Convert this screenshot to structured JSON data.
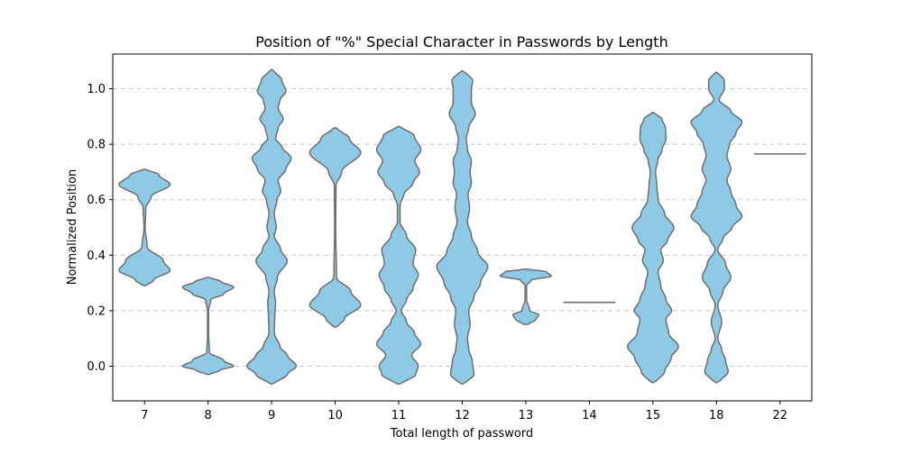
{
  "chart_data": {
    "type": "violin",
    "title": "Position of \"%\" Special Character in Passwords by Length",
    "xlabel": "Total length of password",
    "ylabel": "Normalized Position",
    "ylim": [
      -0.125,
      1.125
    ],
    "yticks": [
      0.0,
      0.2,
      0.4,
      0.6,
      0.8,
      1.0
    ],
    "ytick_labels": [
      "0.0",
      "0.2",
      "0.4",
      "0.6",
      "0.8",
      "1.0"
    ],
    "grid": "y-dashed",
    "fill_color": "#8ecae6",
    "edge_color": "#6e6e6e",
    "categories": [
      "7",
      "8",
      "9",
      "10",
      "11",
      "12",
      "13",
      "14",
      "15",
      "18",
      "22"
    ],
    "violins": [
      {
        "category": "7",
        "ymin": 0.29,
        "ymax": 0.71,
        "profile": [
          [
            0.29,
            0.08
          ],
          [
            0.31,
            0.35
          ],
          [
            0.345,
            0.98
          ],
          [
            0.38,
            0.72
          ],
          [
            0.43,
            0.1
          ],
          [
            0.5,
            0.02
          ],
          [
            0.57,
            0.05
          ],
          [
            0.61,
            0.25
          ],
          [
            0.655,
            0.98
          ],
          [
            0.69,
            0.55
          ],
          [
            0.71,
            0.08
          ]
        ]
      },
      {
        "category": "8",
        "ymin": -0.03,
        "ymax": 0.32,
        "profile": [
          [
            -0.03,
            0.08
          ],
          [
            -0.015,
            0.45
          ],
          [
            0.0,
            0.98
          ],
          [
            0.02,
            0.6
          ],
          [
            0.05,
            0.05
          ],
          [
            0.12,
            0.02
          ],
          [
            0.2,
            0.02
          ],
          [
            0.24,
            0.1
          ],
          [
            0.26,
            0.6
          ],
          [
            0.285,
            0.98
          ],
          [
            0.305,
            0.5
          ],
          [
            0.32,
            0.08
          ]
        ]
      },
      {
        "category": "9",
        "ymin": -0.065,
        "ymax": 1.07,
        "profile": [
          [
            -0.065,
            0.1
          ],
          [
            -0.03,
            0.6
          ],
          [
            0.0,
            0.95
          ],
          [
            0.04,
            0.6
          ],
          [
            0.07,
            0.32
          ],
          [
            0.12,
            0.1
          ],
          [
            0.18,
            0.12
          ],
          [
            0.23,
            0.15
          ],
          [
            0.27,
            0.1
          ],
          [
            0.32,
            0.22
          ],
          [
            0.38,
            0.6
          ],
          [
            0.42,
            0.35
          ],
          [
            0.47,
            0.1
          ],
          [
            0.5,
            0.18
          ],
          [
            0.55,
            0.1
          ],
          [
            0.6,
            0.2
          ],
          [
            0.63,
            0.35
          ],
          [
            0.67,
            0.25
          ],
          [
            0.71,
            0.55
          ],
          [
            0.75,
            0.75
          ],
          [
            0.79,
            0.4
          ],
          [
            0.82,
            0.15
          ],
          [
            0.86,
            0.25
          ],
          [
            0.89,
            0.45
          ],
          [
            0.93,
            0.25
          ],
          [
            0.96,
            0.32
          ],
          [
            0.99,
            0.55
          ],
          [
            1.03,
            0.4
          ],
          [
            1.07,
            0.06
          ]
        ]
      },
      {
        "category": "10",
        "ymin": 0.14,
        "ymax": 0.86,
        "profile": [
          [
            0.14,
            0.08
          ],
          [
            0.17,
            0.35
          ],
          [
            0.22,
            0.98
          ],
          [
            0.27,
            0.6
          ],
          [
            0.32,
            0.05
          ],
          [
            0.5,
            0.02
          ],
          [
            0.65,
            0.03
          ],
          [
            0.7,
            0.25
          ],
          [
            0.77,
            0.98
          ],
          [
            0.82,
            0.55
          ],
          [
            0.86,
            0.08
          ]
        ]
      },
      {
        "category": "11",
        "ymin": -0.065,
        "ymax": 0.865,
        "profile": [
          [
            -0.065,
            0.12
          ],
          [
            -0.03,
            0.65
          ],
          [
            0.0,
            0.75
          ],
          [
            0.04,
            0.5
          ],
          [
            0.08,
            0.85
          ],
          [
            0.12,
            0.6
          ],
          [
            0.16,
            0.3
          ],
          [
            0.2,
            0.1
          ],
          [
            0.24,
            0.3
          ],
          [
            0.28,
            0.55
          ],
          [
            0.33,
            0.75
          ],
          [
            0.37,
            0.55
          ],
          [
            0.42,
            0.65
          ],
          [
            0.47,
            0.3
          ],
          [
            0.52,
            0.05
          ],
          [
            0.58,
            0.05
          ],
          [
            0.62,
            0.2
          ],
          [
            0.66,
            0.55
          ],
          [
            0.7,
            0.8
          ],
          [
            0.74,
            0.62
          ],
          [
            0.78,
            0.85
          ],
          [
            0.83,
            0.6
          ],
          [
            0.865,
            0.08
          ]
        ]
      },
      {
        "category": "12",
        "ymin": -0.065,
        "ymax": 1.065,
        "profile": [
          [
            -0.065,
            0.1
          ],
          [
            -0.03,
            0.45
          ],
          [
            0.02,
            0.38
          ],
          [
            0.06,
            0.25
          ],
          [
            0.1,
            0.2
          ],
          [
            0.15,
            0.3
          ],
          [
            0.2,
            0.25
          ],
          [
            0.25,
            0.45
          ],
          [
            0.3,
            0.7
          ],
          [
            0.36,
            0.98
          ],
          [
            0.41,
            0.6
          ],
          [
            0.47,
            0.35
          ],
          [
            0.52,
            0.2
          ],
          [
            0.57,
            0.28
          ],
          [
            0.62,
            0.22
          ],
          [
            0.66,
            0.35
          ],
          [
            0.7,
            0.3
          ],
          [
            0.74,
            0.35
          ],
          [
            0.78,
            0.2
          ],
          [
            0.82,
            0.15
          ],
          [
            0.86,
            0.25
          ],
          [
            0.91,
            0.5
          ],
          [
            0.95,
            0.35
          ],
          [
            1.0,
            0.35
          ],
          [
            1.03,
            0.4
          ],
          [
            1.065,
            0.08
          ]
        ]
      },
      {
        "category": "13",
        "ymin": 0.15,
        "ymax": 0.35,
        "profile": [
          [
            0.15,
            0.1
          ],
          [
            0.17,
            0.4
          ],
          [
            0.185,
            0.5
          ],
          [
            0.2,
            0.15
          ],
          [
            0.24,
            0.03
          ],
          [
            0.29,
            0.03
          ],
          [
            0.31,
            0.2
          ],
          [
            0.325,
            0.98
          ],
          [
            0.34,
            0.8
          ],
          [
            0.35,
            0.1
          ]
        ]
      },
      {
        "category": "14",
        "line": 0.23
      },
      {
        "category": "15",
        "ymin": -0.06,
        "ymax": 0.915,
        "profile": [
          [
            -0.06,
            0.1
          ],
          [
            -0.02,
            0.45
          ],
          [
            0.03,
            0.7
          ],
          [
            0.07,
            0.98
          ],
          [
            0.12,
            0.6
          ],
          [
            0.17,
            0.5
          ],
          [
            0.2,
            0.72
          ],
          [
            0.24,
            0.5
          ],
          [
            0.29,
            0.3
          ],
          [
            0.34,
            0.2
          ],
          [
            0.38,
            0.4
          ],
          [
            0.42,
            0.3
          ],
          [
            0.45,
            0.55
          ],
          [
            0.5,
            0.8
          ],
          [
            0.55,
            0.45
          ],
          [
            0.6,
            0.2
          ],
          [
            0.65,
            0.15
          ],
          [
            0.7,
            0.1
          ],
          [
            0.74,
            0.18
          ],
          [
            0.78,
            0.35
          ],
          [
            0.82,
            0.5
          ],
          [
            0.86,
            0.48
          ],
          [
            0.89,
            0.35
          ],
          [
            0.915,
            0.06
          ]
        ]
      },
      {
        "category": "18",
        "ymin": -0.06,
        "ymax": 1.06,
        "profile": [
          [
            -0.06,
            0.1
          ],
          [
            -0.02,
            0.45
          ],
          [
            0.02,
            0.35
          ],
          [
            0.06,
            0.2
          ],
          [
            0.1,
            0.05
          ],
          [
            0.16,
            0.2
          ],
          [
            0.22,
            0.05
          ],
          [
            0.27,
            0.25
          ],
          [
            0.32,
            0.55
          ],
          [
            0.37,
            0.35
          ],
          [
            0.42,
            0.05
          ],
          [
            0.46,
            0.25
          ],
          [
            0.5,
            0.6
          ],
          [
            0.54,
            0.98
          ],
          [
            0.58,
            0.75
          ],
          [
            0.63,
            0.55
          ],
          [
            0.67,
            0.4
          ],
          [
            0.71,
            0.55
          ],
          [
            0.76,
            0.4
          ],
          [
            0.8,
            0.5
          ],
          [
            0.84,
            0.75
          ],
          [
            0.88,
            0.98
          ],
          [
            0.92,
            0.55
          ],
          [
            0.96,
            0.1
          ],
          [
            1.0,
            0.3
          ],
          [
            1.03,
            0.3
          ],
          [
            1.06,
            0.06
          ]
        ]
      },
      {
        "category": "22",
        "line": 0.765
      }
    ]
  }
}
